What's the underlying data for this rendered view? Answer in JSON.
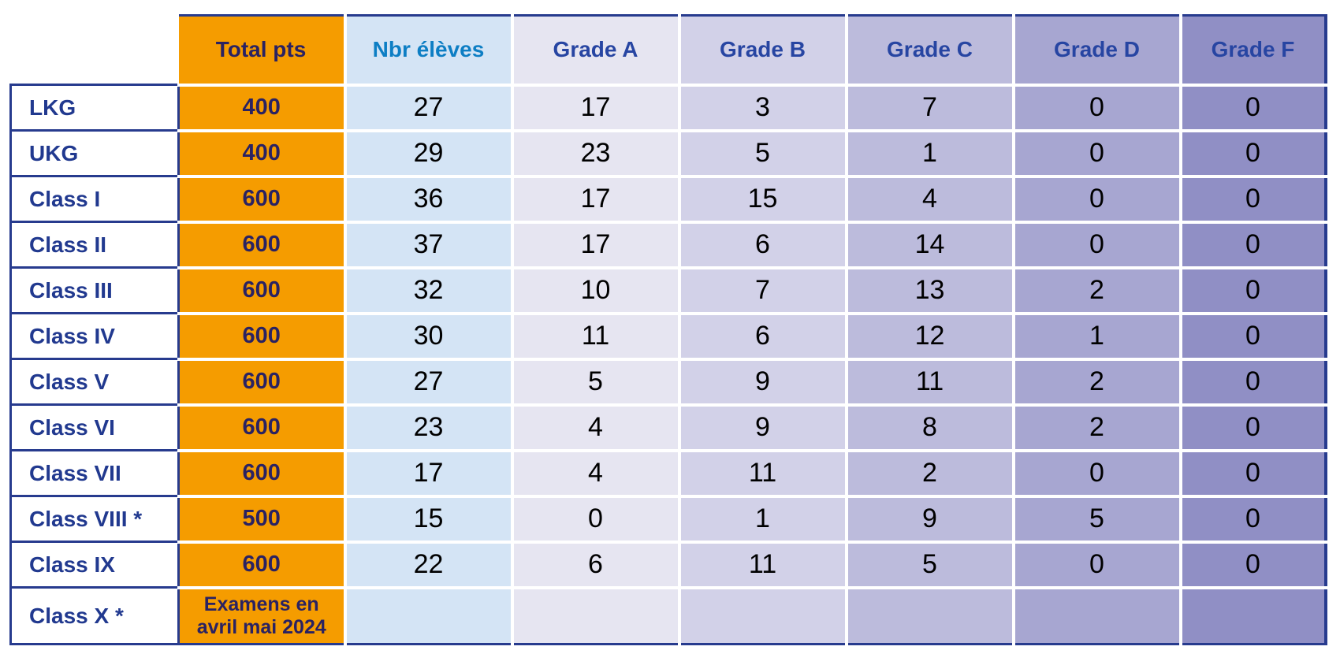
{
  "table": {
    "corner_label": "",
    "columns": [
      {
        "label": "Total pts",
        "bg": "#F59C00",
        "header_text": "#2A2262",
        "cell_text": "#2A2262"
      },
      {
        "label": "Nbr élèves",
        "bg": "#D4E4F5",
        "header_text": "#0D7EC4",
        "cell_text": "#000000"
      },
      {
        "label": "Grade A",
        "bg": "#E6E5F1",
        "header_text": "#2745A2",
        "cell_text": "#000000"
      },
      {
        "label": "Grade B",
        "bg": "#D2D1E8",
        "header_text": "#2745A2",
        "cell_text": "#000000"
      },
      {
        "label": "Grade C",
        "bg": "#BCBBDC",
        "header_text": "#2745A2",
        "cell_text": "#000000"
      },
      {
        "label": "Grade D",
        "bg": "#A7A6D1",
        "header_text": "#2745A2",
        "cell_text": "#000000"
      },
      {
        "label": "Grade F",
        "bg": "#908FC5",
        "header_text": "#2745A2",
        "cell_text": "#000000"
      }
    ],
    "rows": [
      {
        "label": "LKG",
        "total": "400",
        "cells": [
          "27",
          "17",
          "3",
          "7",
          "0",
          "0"
        ]
      },
      {
        "label": "UKG",
        "total": "400",
        "cells": [
          "29",
          "23",
          "5",
          "1",
          "0",
          "0"
        ]
      },
      {
        "label": "Class I",
        "total": "600",
        "cells": [
          "36",
          "17",
          "15",
          "4",
          "0",
          "0"
        ]
      },
      {
        "label": "Class II",
        "total": "600",
        "cells": [
          "37",
          "17",
          "6",
          "14",
          "0",
          "0"
        ]
      },
      {
        "label": "Class III",
        "total": "600",
        "cells": [
          "32",
          "10",
          "7",
          "13",
          "2",
          "0"
        ]
      },
      {
        "label": "Class IV",
        "total": "600",
        "cells": [
          "30",
          "11",
          "6",
          "12",
          "1",
          "0"
        ]
      },
      {
        "label": "Class V",
        "total": "600",
        "cells": [
          "27",
          "5",
          "9",
          "11",
          "2",
          "0"
        ]
      },
      {
        "label": "Class VI",
        "total": "600",
        "cells": [
          "23",
          "4",
          "9",
          "8",
          "2",
          "0"
        ]
      },
      {
        "label": "Class VII",
        "total": "600",
        "cells": [
          "17",
          "4",
          "11",
          "2",
          "0",
          "0"
        ]
      },
      {
        "label": "Class VIII *",
        "total": "500",
        "cells": [
          "15",
          "0",
          "1",
          "9",
          "5",
          "0"
        ]
      },
      {
        "label": "Class IX",
        "total": "600",
        "cells": [
          "22",
          "6",
          "11",
          "5",
          "0",
          "0"
        ]
      },
      {
        "label": "Class X *",
        "total": "Examens en avril mai 2024",
        "cells": [
          "",
          "",
          "",
          "",
          "",
          ""
        ]
      }
    ]
  },
  "colors": {
    "border_navy": "#273B8E",
    "row_label_text": "#21398F",
    "gridline_white": "#FFFFFF",
    "page_background": "#FFFFFF"
  },
  "layout_values": {
    "header_row_height_px": "88",
    "data_row_height_px": "58",
    "last_row_height_px": "72"
  }
}
